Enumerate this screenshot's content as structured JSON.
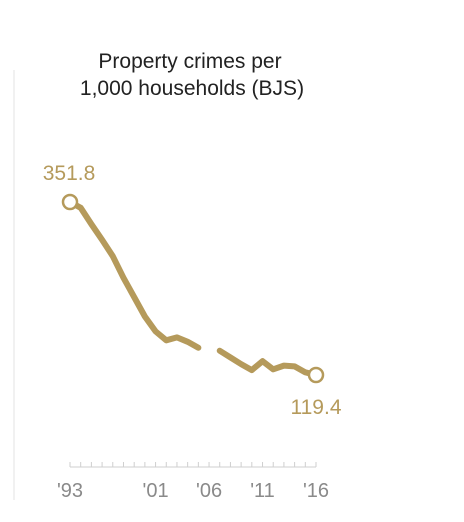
{
  "colors": {
    "series": "#b59a5b",
    "text": "#222222",
    "axis": "#cfcfcf",
    "tick_label": "#8a8a8a"
  },
  "chart_data": {
    "type": "line",
    "title": "Property crimes per",
    "subtitle": "1,000 households (BJS)",
    "xlabel": "",
    "ylabel": "",
    "xlim": [
      1993,
      2016
    ],
    "ylim": [
      100,
      380
    ],
    "grid": false,
    "x_tick_labels": [
      "'93",
      "'01",
      "'06",
      "'11",
      "'16"
    ],
    "x_tick_values": [
      1993,
      2001,
      2006,
      2011,
      2016
    ],
    "series": [
      {
        "x": [
          1993,
          1994,
          1995,
          1996,
          1997,
          1998,
          1999,
          2000,
          2001,
          2002,
          2003,
          2004,
          2005,
          2006,
          2007,
          2008,
          2009,
          2010,
          2011,
          2012,
          2013,
          2014,
          2015,
          2016
        ],
        "values": [
          351.8,
          344,
          322,
          301,
          279,
          250,
          224,
          198,
          178,
          166,
          170,
          164,
          156,
          null,
          152,
          143,
          134,
          126,
          138,
          127,
          132,
          131,
          123,
          119.4
        ]
      }
    ],
    "endpoint_labels": {
      "start": "351.8",
      "end": "119.4"
    }
  }
}
